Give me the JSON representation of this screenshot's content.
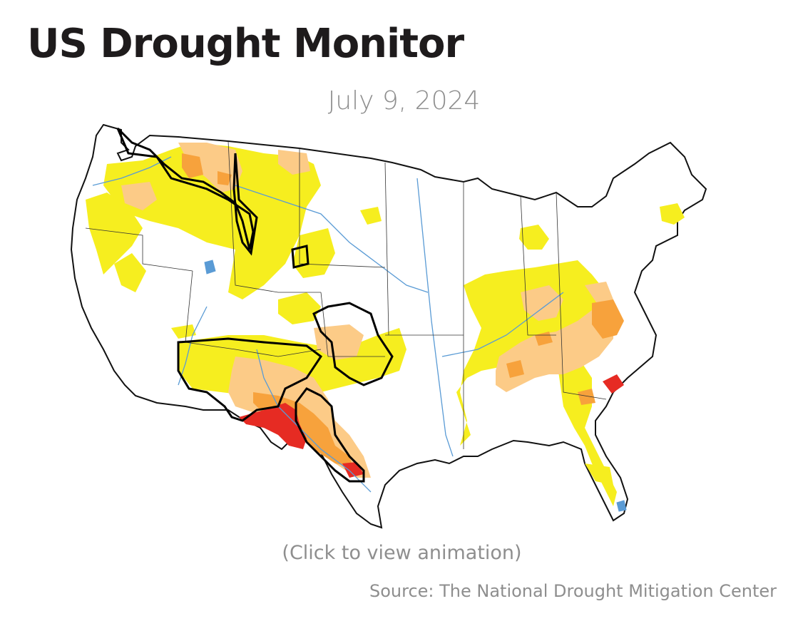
{
  "header": {
    "title": "US Drought Monitor",
    "date": "July 9, 2024"
  },
  "map": {
    "hint": "(Click to view animation)",
    "source": "Source: The National Drought Mitigation Center",
    "colors": {
      "land": "#ffffff",
      "border": "#111111",
      "water": "#5a9bd5",
      "d0_abnormally_dry": "#f6ee1f",
      "d1_moderate": "#fccb87",
      "d2_severe": "#f7a23c",
      "d3_extreme": "#e62b23",
      "impact_outline": "#000000"
    }
  }
}
